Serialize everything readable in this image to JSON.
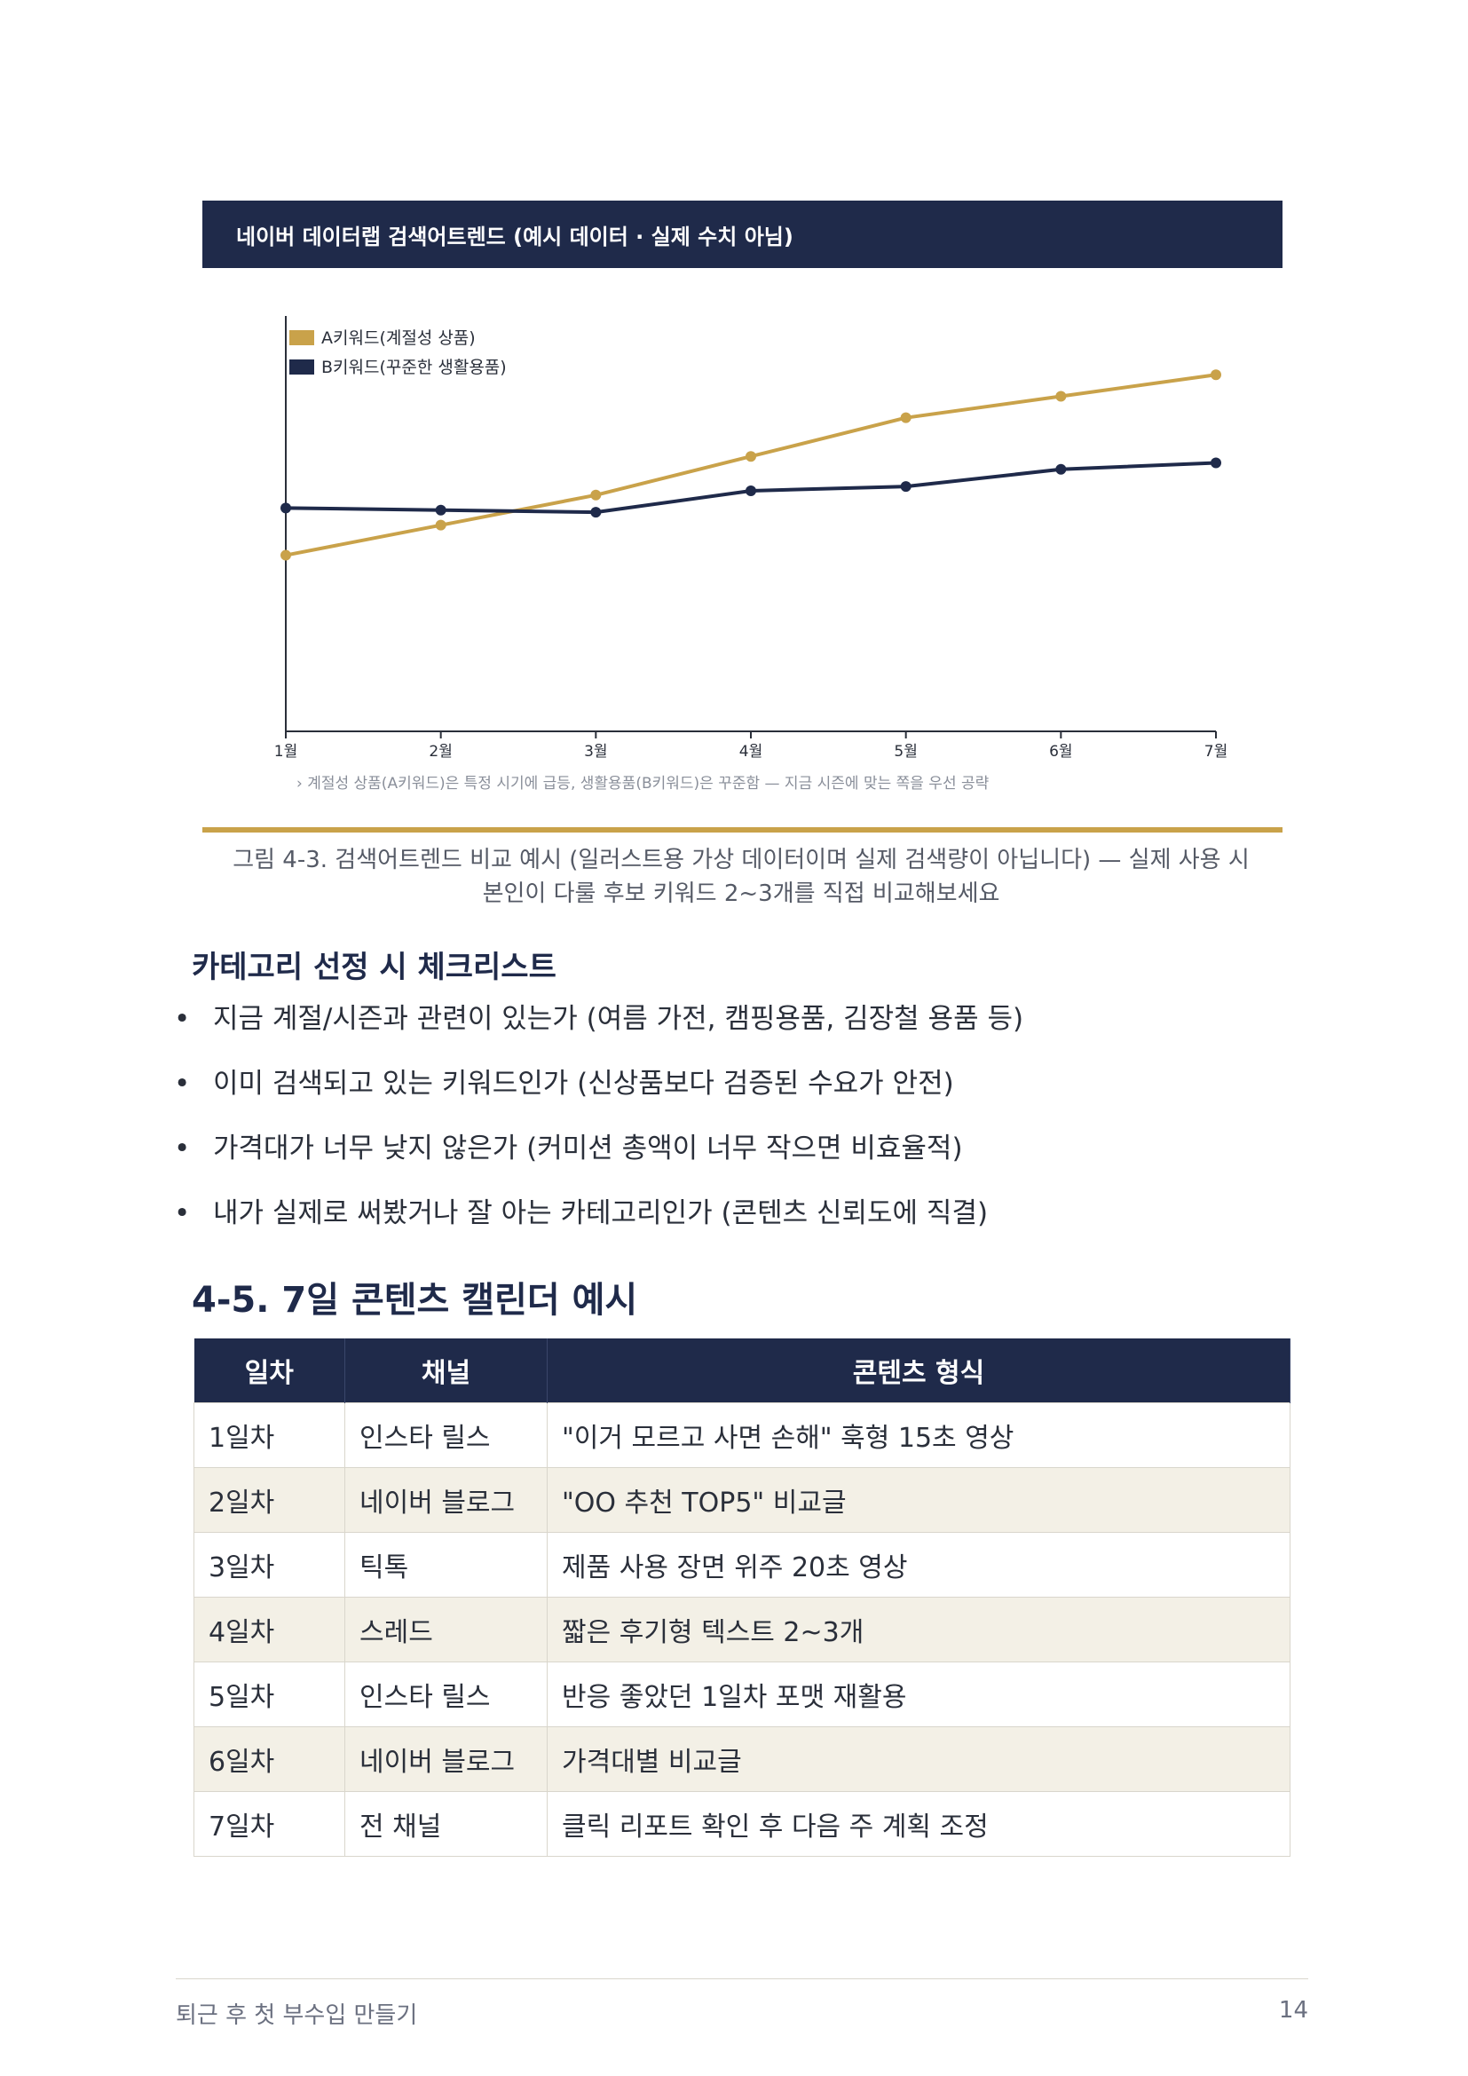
{
  "chart_header": "네이버 데이터랩 검색어트렌드 (예시 데이터 · 실제 수치 아님)",
  "chart_data": {
    "type": "line",
    "categories": [
      "1월",
      "2월",
      "3월",
      "4월",
      "5월",
      "6월",
      "7월"
    ],
    "series": [
      {
        "name": "A키워드(계절성 상품)",
        "color": "#c9a24a",
        "values": [
          41,
          48,
          55,
          64,
          73,
          78,
          83
        ]
      },
      {
        "name": "B키워드(꾸준한 생활용품)",
        "color": "#1f2a4a",
        "values": [
          52,
          51.5,
          51,
          56,
          57,
          61,
          62.5
        ]
      }
    ],
    "ylim": [
      0,
      100
    ],
    "legend_position": "top-left",
    "note": "› 계절성 상품(A키워드)은 특정 시기에 급등, 생활용품(B키워드)은 꾸준함 — 지금 시즌에 맞는 쪽을 우선 공략"
  },
  "caption_line1": "그림 4-3. 검색어트렌드 비교 예시 (일러스트용 가상 데이터이며 실제 검색량이 아닙니다) — 실제 사용 시",
  "caption_line2": "본인이 다룰 후보 키워드 2~3개를 직접 비교해보세요",
  "checklist_title": "카테고리 선정 시 체크리스트",
  "bullet_glyph": "•",
  "checklist": [
    "지금 계절/시즌과 관련이 있는가 (여름 가전, 캠핑용품, 김장철 용품 등)",
    "이미 검색되고 있는 키워드인가 (신상품보다 검증된 수요가 안전)",
    "가격대가 너무 낮지 않은가 (커미션 총액이 너무 작으면 비효율적)",
    "내가 실제로 써봤거나 잘 아는 카테고리인가 (콘텐츠 신뢰도에 직결)"
  ],
  "section_title": "4-5. 7일 콘텐츠 캘린더 예시",
  "table": {
    "headers": [
      "일차",
      "채널",
      "콘텐츠 형식"
    ],
    "rows": [
      [
        "1일차",
        "인스타 릴스",
        "\"이거 모르고 사면 손해\" 훅형 15초 영상"
      ],
      [
        "2일차",
        "네이버 블로그",
        "\"OO 추천 TOP5\" 비교글"
      ],
      [
        "3일차",
        "틱톡",
        "제품 사용 장면 위주 20초 영상"
      ],
      [
        "4일차",
        "스레드",
        "짧은 후기형 텍스트 2~3개"
      ],
      [
        "5일차",
        "인스타 릴스",
        "반응 좋았던 1일차 포맷 재활용"
      ],
      [
        "6일차",
        "네이버 블로그",
        "가격대별 비교글"
      ],
      [
        "7일차",
        "전 채널",
        "클릭 리포트 확인 후 다음 주 계획 조정"
      ]
    ]
  },
  "footer": {
    "title": "퇴근 후 첫 부수입 만들기",
    "page": "14"
  }
}
